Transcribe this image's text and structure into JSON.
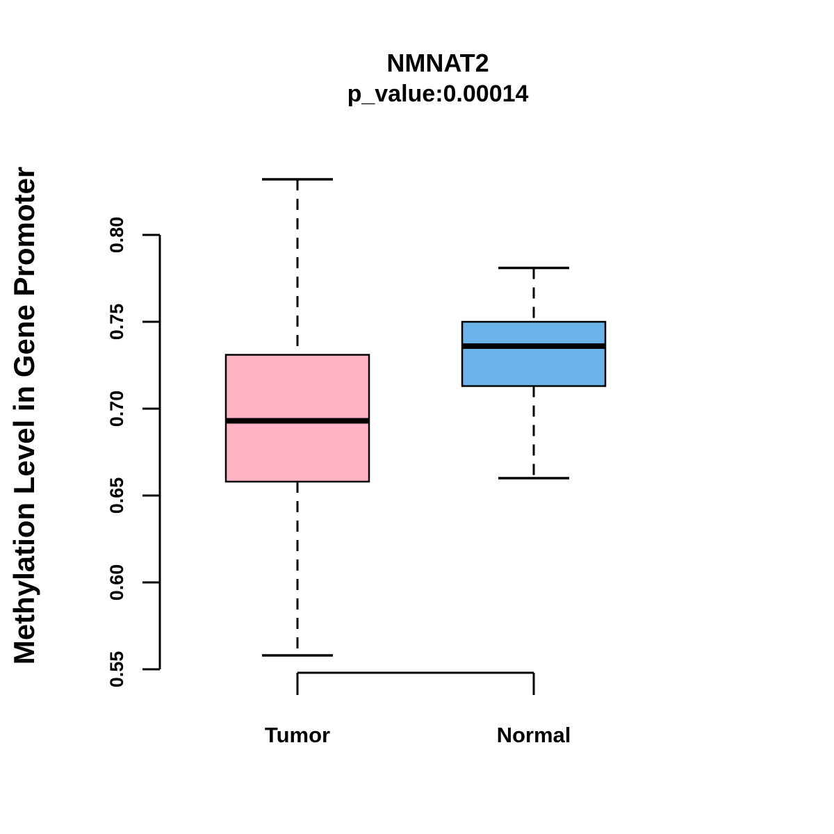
{
  "chart_data": {
    "type": "boxplot",
    "title": "NMNAT2",
    "subtitle": "p_value:0.00014",
    "ylabel": "Methylation Level in Gene Promoter",
    "xlabel": "",
    "ylim": [
      0.55,
      0.8
    ],
    "yticks": [
      "0.55",
      "0.60",
      "0.65",
      "0.70",
      "0.75",
      "0.80"
    ],
    "grid": "off",
    "legend": "none",
    "groups": [
      {
        "label": "Tumor",
        "color": "#FFB3C5",
        "whisker_low": 0.558,
        "q1": 0.658,
        "median": 0.693,
        "q3": 0.731,
        "whisker_high": 0.832
      },
      {
        "label": "Normal",
        "color": "#6AB2E8",
        "whisker_low": 0.66,
        "q1": 0.713,
        "median": 0.736,
        "q3": 0.75,
        "whisker_high": 0.781
      }
    ],
    "colors": {
      "box_border": "#000000",
      "median_line": "#000000",
      "axis": "#000000",
      "text": "#000000"
    }
  }
}
